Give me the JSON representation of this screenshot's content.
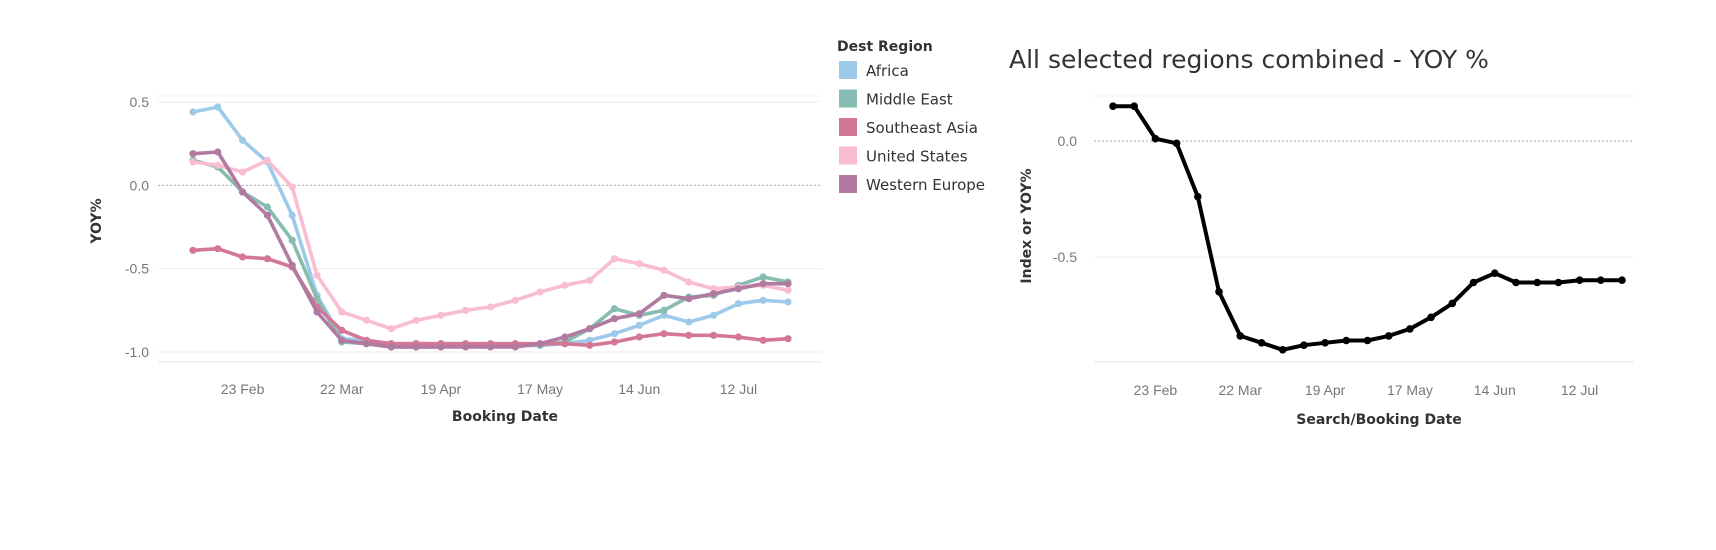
{
  "chart_data": [
    {
      "type": "line",
      "title": "",
      "xlabel": "Booking Date",
      "ylabel": "YOY%",
      "ylim": [
        -1.05,
        0.52
      ],
      "x_ticks": [
        "23 Feb",
        "22 Mar",
        "19 Apr",
        "17 May",
        "14 Jun",
        "12 Jul"
      ],
      "y_ticks": [
        "0.5",
        "0.0",
        "-0.5",
        "-1.0"
      ],
      "legend": {
        "title": "Dest Region",
        "placement": "right",
        "entries": [
          "Africa",
          "Middle East",
          "Southeast Asia",
          "United States",
          "Western Europe"
        ]
      },
      "x": [
        "2020-02-09",
        "2020-02-16",
        "2020-02-23",
        "2020-03-01",
        "2020-03-08",
        "2020-03-15",
        "2020-03-22",
        "2020-03-29",
        "2020-04-05",
        "2020-04-12",
        "2020-04-19",
        "2020-04-26",
        "2020-05-03",
        "2020-05-10",
        "2020-05-17",
        "2020-05-24",
        "2020-05-31",
        "2020-06-07",
        "2020-06-14",
        "2020-06-21",
        "2020-06-28",
        "2020-07-05",
        "2020-07-12",
        "2020-07-19",
        "2020-07-26"
      ],
      "series": [
        {
          "name": "Africa",
          "color": "#9ecae9",
          "values": [
            0.44,
            0.47,
            0.27,
            0.14,
            -0.18,
            -0.66,
            -0.92,
            -0.93,
            -0.95,
            -0.95,
            -0.95,
            -0.95,
            -0.96,
            -0.96,
            -0.96,
            -0.95,
            -0.93,
            -0.89,
            -0.84,
            -0.78,
            -0.82,
            -0.78,
            -0.71,
            -0.69,
            -0.7
          ]
        },
        {
          "name": "Middle East",
          "color": "#86bcb1",
          "values": [
            0.15,
            0.11,
            -0.04,
            -0.13,
            -0.33,
            -0.68,
            -0.94,
            -0.95,
            -0.97,
            -0.97,
            -0.97,
            -0.96,
            -0.96,
            -0.96,
            -0.96,
            -0.94,
            -0.86,
            -0.74,
            -0.78,
            -0.75,
            -0.67,
            -0.66,
            -0.6,
            -0.55,
            -0.58
          ]
        },
        {
          "name": "Southeast Asia",
          "color": "#d47796",
          "values": [
            -0.39,
            -0.38,
            -0.43,
            -0.44,
            -0.49,
            -0.73,
            -0.87,
            -0.93,
            -0.95,
            -0.95,
            -0.95,
            -0.95,
            -0.95,
            -0.95,
            -0.95,
            -0.95,
            -0.96,
            -0.94,
            -0.91,
            -0.89,
            -0.9,
            -0.9,
            -0.91,
            -0.93,
            -0.92
          ]
        },
        {
          "name": "United States",
          "color": "#f9bdd3",
          "values": [
            0.14,
            0.12,
            0.08,
            0.15,
            -0.01,
            -0.54,
            -0.76,
            -0.81,
            -0.86,
            -0.81,
            -0.78,
            -0.75,
            -0.73,
            -0.69,
            -0.64,
            -0.6,
            -0.57,
            -0.44,
            -0.47,
            -0.51,
            -0.58,
            -0.62,
            -0.61,
            -0.6,
            -0.63
          ]
        },
        {
          "name": "Western Europe",
          "color": "#b07aa1",
          "values": [
            0.19,
            0.2,
            -0.04,
            -0.18,
            -0.48,
            -0.76,
            -0.93,
            -0.95,
            -0.97,
            -0.97,
            -0.97,
            -0.97,
            -0.97,
            -0.97,
            -0.95,
            -0.91,
            -0.86,
            -0.8,
            -0.77,
            -0.66,
            -0.68,
            -0.65,
            -0.62,
            -0.59,
            -0.59
          ]
        }
      ]
    },
    {
      "type": "line",
      "title": "All selected regions combined - YOY %",
      "xlabel": "Search/Booking Date",
      "ylabel": "Index or YOY%",
      "ylim": [
        -0.95,
        0.2
      ],
      "x_ticks": [
        "23 Feb",
        "22 Mar",
        "19 Apr",
        "17 May",
        "14 Jun",
        "12 Jul"
      ],
      "y_ticks": [
        "0.0",
        "-0.5"
      ],
      "x": [
        "2020-02-09",
        "2020-02-16",
        "2020-02-23",
        "2020-03-01",
        "2020-03-08",
        "2020-03-15",
        "2020-03-22",
        "2020-03-29",
        "2020-04-05",
        "2020-04-12",
        "2020-04-19",
        "2020-04-26",
        "2020-05-03",
        "2020-05-10",
        "2020-05-17",
        "2020-05-24",
        "2020-05-31",
        "2020-06-07",
        "2020-06-14",
        "2020-06-21",
        "2020-06-28",
        "2020-07-05",
        "2020-07-12",
        "2020-07-19",
        "2020-07-26"
      ],
      "series": [
        {
          "color": "#000000",
          "values": [
            0.15,
            0.15,
            0.01,
            -0.01,
            -0.24,
            -0.65,
            -0.84,
            -0.87,
            -0.9,
            -0.88,
            -0.87,
            -0.86,
            -0.86,
            -0.84,
            -0.81,
            -0.76,
            -0.7,
            -0.61,
            -0.57,
            -0.61,
            -0.61,
            -0.61,
            -0.6,
            -0.6,
            -0.6
          ]
        }
      ]
    }
  ]
}
